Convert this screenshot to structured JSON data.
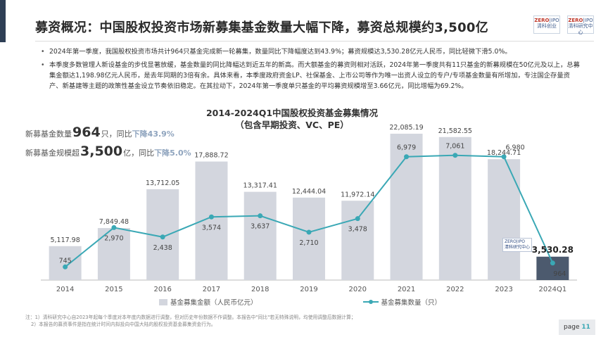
{
  "header": {
    "title": "募资概况：中国股权投资市场新募集基金数量大幅下降，募资总规模约3,500亿",
    "logo_left": [
      "ZERO",
      "IPO",
      "清科创业"
    ],
    "logo_right": [
      "ZERO",
      "IPO",
      "清科研究中心"
    ]
  },
  "bullets": [
    "2024年第一季度，我国股权投资市场共计964只基金完成新一轮募集，数量同比下降幅度达到43.9%；募资规模达3,530.28亿元人民币，同比轻微下滑5.0%。",
    "本季度多数管理人新设基金的步伐显著放缓，基金数量的同比降幅达到近五年的新高。而大额基金的募资则相对活跃，2024年第一季度共有11只基金的新募规模在50亿元及以上，总募集金额达1,198.98亿元人民币，是去年同期的3倍有余。具体来看，本季度政府资金LP、社保基金、上市公司等作为唯一出资人设立的专户/专项基金数量有所增加，专注国企存量资产、新基建等主题的政策性基金设立节奏依旧稳定。在其拉动下，2024年第一季度单只基金的平均募资规模增至3.66亿元，同比增幅为69.2%。"
  ],
  "stats": {
    "count_prefix": "新募基金数量",
    "count_value": "964",
    "count_unit": "只",
    "count_mid": "，同比",
    "count_change": "下降43.9%",
    "size_prefix": "新募基金规模超",
    "size_value": "3,500",
    "size_unit": "亿",
    "size_mid": "，同比",
    "size_change": "下降5.0%"
  },
  "chart_data": {
    "type": "bar",
    "title": "2014-2024Q1中国股权投资基金募集情况",
    "subtitle": "（包含早期投资、VC、PE）",
    "categories": [
      "2014",
      "2015",
      "2016",
      "2017",
      "2018",
      "2019",
      "2020",
      "2021",
      "2022",
      "2023",
      "2024Q1"
    ],
    "series": [
      {
        "name": "基金募集金额（人民币亿元）",
        "type": "bar",
        "values": [
          5117.98,
          7849.48,
          13712.05,
          17888.72,
          13317.41,
          12444.04,
          11972.14,
          22085.19,
          21582.55,
          18244.71,
          3530.28
        ],
        "labels": [
          "5,117.98",
          "7,849.48",
          "13,712.05",
          "17,888.72",
          "13,317.41",
          "12,444.04",
          "11,972.14",
          "22,085.19",
          "21,582.55",
          "18,244.71",
          "3,530.28"
        ],
        "color": "#d3d6de",
        "highlight_color": "#4c5a6e"
      },
      {
        "name": "基金募集数量（只）",
        "type": "line",
        "values": [
          745,
          2970,
          2438,
          3574,
          3637,
          2710,
          3478,
          6979,
          7061,
          6980,
          964
        ],
        "labels": [
          "745",
          "2,970",
          "2,438",
          "3,574",
          "3,637",
          "2,710",
          "3,478",
          "6,979",
          "7,061",
          "6,980",
          "964"
        ],
        "color": "#3aa8b5"
      }
    ],
    "ylim_bar": [
      0,
      24000
    ],
    "ylim_line": [
      0,
      9000
    ],
    "legend_position": "bottom",
    "grid": false
  },
  "notes": [
    "注：1）清科研究中心自2023年起每个季度对本年度内数据进行调整，但对历史年份数据不作调整。本报告中\"同比\"若无特殊说明，均使用调整后数据计算；",
    "2）本报告的募资事件是指在统计时间内拟投向中国大陆的股权投资基金募集资金行为。"
  ],
  "watermark": [
    "ZERO",
    "IPO",
    "清科研究中心"
  ],
  "page": {
    "label": "page",
    "number": "11"
  }
}
